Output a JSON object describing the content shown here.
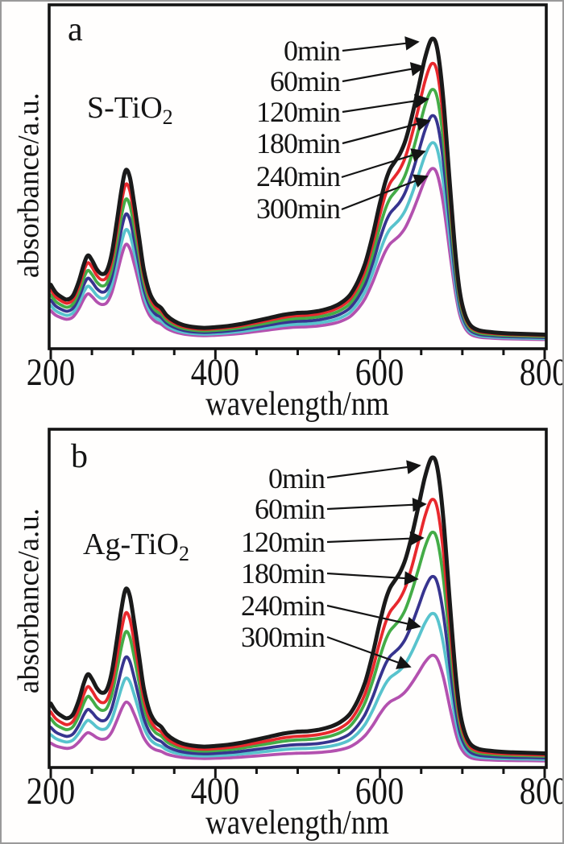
{
  "figure": {
    "panel_a": {
      "panel_letter": "a",
      "sample_prefix": "S-TiO",
      "sample_sub": "2"
    },
    "panel_b": {
      "panel_letter": "b",
      "sample_prefix": "Ag-TiO",
      "sample_sub": "2"
    },
    "x_axis_label": "wavelength/nm",
    "y_axis_label": "absorbance/a.u."
  },
  "chart_data": {
    "type": "line",
    "x_axis": {
      "label": "wavelength/nm",
      "min": 200,
      "max": 800,
      "major_ticks": [
        "200",
        "400",
        "600",
        "800"
      ],
      "minor_tick_step_nm": 50
    },
    "y_axis": {
      "label": "absorbance/a.u.",
      "tick_labels_visible": false,
      "units": "arbitrary"
    },
    "base_spectrum": {
      "note": "shared methylene-blue absorbance shape, normalized so the 0min main peak at 664 nm = 1.0; each series = shape x peak_scale",
      "x": [
        200,
        206,
        213,
        220,
        227,
        234,
        240,
        245,
        250,
        256,
        262,
        268,
        274,
        280,
        286,
        291,
        296,
        301,
        307,
        313,
        320,
        327,
        334,
        341,
        350,
        360,
        372,
        386,
        400,
        415,
        430,
        448,
        465,
        482,
        498,
        512,
        526,
        540,
        552,
        563,
        573,
        582,
        591,
        599,
        606,
        612,
        618,
        624,
        631,
        639,
        647,
        654,
        660,
        664,
        668,
        672,
        677,
        682,
        687,
        692,
        697,
        703,
        710,
        720,
        735,
        755,
        778,
        800
      ],
      "absorbance": [
        0.2,
        0.175,
        0.16,
        0.152,
        0.165,
        0.21,
        0.265,
        0.295,
        0.28,
        0.25,
        0.235,
        0.245,
        0.3,
        0.4,
        0.51,
        0.572,
        0.55,
        0.47,
        0.36,
        0.25,
        0.175,
        0.14,
        0.125,
        0.1,
        0.082,
        0.07,
        0.063,
        0.06,
        0.062,
        0.066,
        0.072,
        0.082,
        0.092,
        0.102,
        0.108,
        0.11,
        0.115,
        0.125,
        0.14,
        0.165,
        0.21,
        0.27,
        0.36,
        0.455,
        0.53,
        0.575,
        0.6,
        0.625,
        0.67,
        0.75,
        0.845,
        0.93,
        0.985,
        1.0,
        0.985,
        0.925,
        0.8,
        0.63,
        0.45,
        0.29,
        0.175,
        0.105,
        0.068,
        0.052,
        0.046,
        0.042,
        0.04,
        0.038
      ],
      "main_peak_nm": 664,
      "shoulder_nm": 612,
      "uv_peaks_nm": [
        245,
        291
      ]
    },
    "panels": [
      {
        "id": "a",
        "sample": "S-TiO2",
        "series": [
          {
            "label": "0min",
            "color": "#1a1a1a",
            "peak_scale": 1.0
          },
          {
            "label": "60min",
            "color": "#e8282d",
            "peak_scale": 0.92
          },
          {
            "label": "120min",
            "color": "#44ac47",
            "peak_scale": 0.835
          },
          {
            "label": "180min",
            "color": "#37348f",
            "peak_scale": 0.75
          },
          {
            "label": "240min",
            "color": "#58c3cd",
            "peak_scale": 0.662
          },
          {
            "label": "300min",
            "color": "#b351af",
            "peak_scale": 0.578
          }
        ]
      },
      {
        "id": "b",
        "sample": "Ag-TiO2",
        "series": [
          {
            "label": "0min",
            "color": "#1a1a1a",
            "peak_scale": 1.0
          },
          {
            "label": "60min",
            "color": "#e8282d",
            "peak_scale": 0.864
          },
          {
            "label": "120min",
            "color": "#44ac47",
            "peak_scale": 0.757
          },
          {
            "label": "180min",
            "color": "#37348f",
            "peak_scale": 0.613
          },
          {
            "label": "240min",
            "color": "#58c3cd",
            "peak_scale": 0.493
          },
          {
            "label": "300min",
            "color": "#b351af",
            "peak_scale": 0.357
          }
        ]
      }
    ]
  }
}
